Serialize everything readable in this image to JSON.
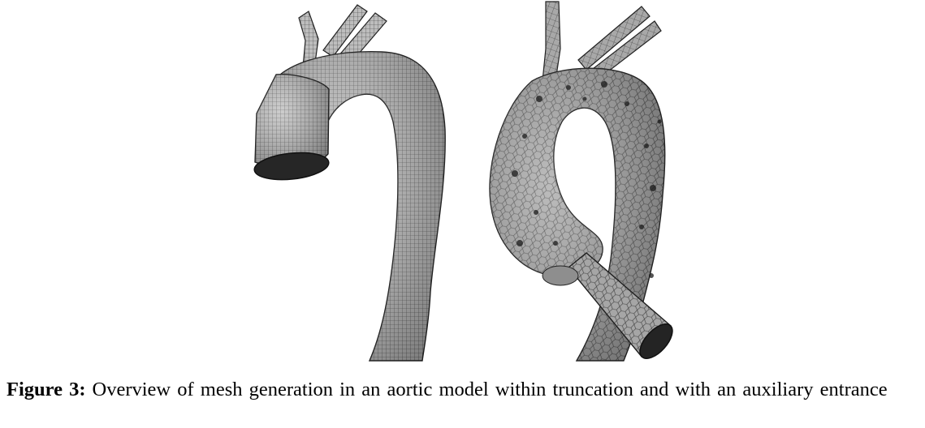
{
  "caption": {
    "label": "Figure 3:",
    "text": "Overview of mesh generation in an aortic model within truncation and with an auxiliary entrance"
  },
  "colors": {
    "mesh_fill_left": "#b8b8b8",
    "mesh_fill_right": "#9c9c9c",
    "mesh_line": "#2a2a2a",
    "opening": "#202020"
  }
}
